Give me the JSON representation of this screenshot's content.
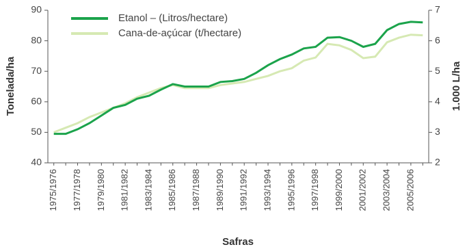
{
  "chart_data": {
    "type": "line",
    "categories": [
      "1975/1976",
      null,
      "1977/1978",
      null,
      "1979/1980",
      null,
      "1981/1982",
      null,
      "1983/1984",
      null,
      "1985/1986",
      null,
      "1987/1988",
      null,
      "1989/1990",
      null,
      "1991/1992",
      null,
      "1993/1994",
      null,
      "1995/1996",
      null,
      "1997/1998",
      null,
      "1999/2000",
      null,
      "2001/2002",
      null,
      "2003/2004",
      null,
      "2005/2006",
      null
    ],
    "series": [
      {
        "name": "Etanol – (Litros/hectare)",
        "color": "#1ba34b",
        "axis": "y2",
        "values": [
          2.95,
          2.95,
          3.1,
          3.3,
          3.55,
          3.8,
          3.9,
          4.1,
          4.2,
          4.4,
          4.58,
          4.5,
          4.5,
          4.5,
          4.65,
          4.68,
          4.75,
          4.95,
          5.2,
          5.4,
          5.55,
          5.75,
          5.8,
          6.1,
          6.12,
          6.0,
          5.8,
          5.9,
          6.35,
          6.55,
          6.62,
          6.6
        ]
      },
      {
        "name": "Cana-de-açúcar (t/hectare)",
        "color": "#d6e9b3",
        "values": [
          50,
          51.5,
          53,
          55,
          56.5,
          58,
          59.5,
          61.5,
          63,
          64.5,
          65.5,
          64.5,
          64.5,
          64.5,
          65.5,
          66,
          66.5,
          67.5,
          68.5,
          70,
          71,
          73.5,
          74.5,
          79,
          78.5,
          77,
          74.3,
          74.8,
          79.5,
          81,
          82,
          81.8
        ]
      }
    ],
    "x_label": "Safras",
    "y_label": "Tonelada/ha",
    "y2_label": "1.000 L/ha",
    "ylim": [
      40,
      90
    ],
    "yticks": [
      40,
      50,
      60,
      70,
      80,
      90
    ],
    "y2lim": [
      2,
      7
    ],
    "y2ticks": [
      2,
      3,
      4,
      5,
      6,
      7
    ]
  }
}
